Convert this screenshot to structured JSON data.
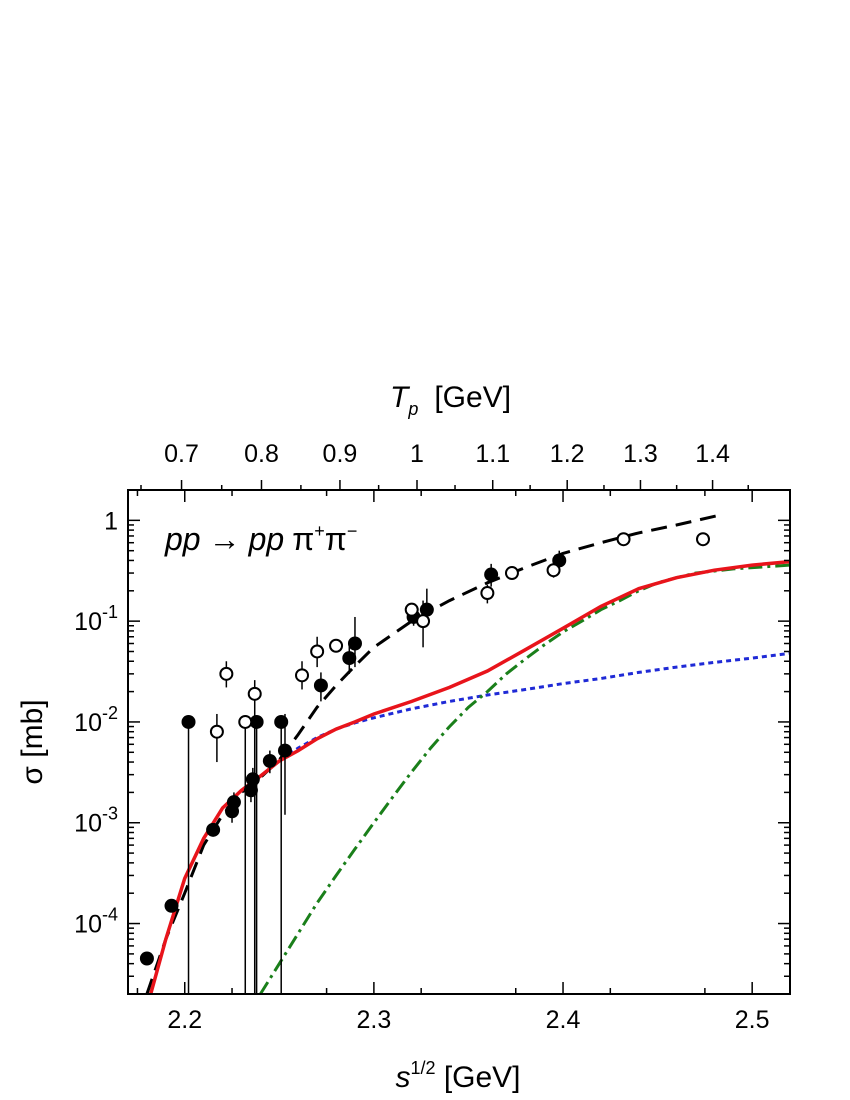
{
  "chart_data": {
    "type": "scatter",
    "title": "",
    "plot_label": {
      "reaction_lhs": "pp",
      "arrow": "→",
      "reaction_rhs": "pp",
      "pi": "π",
      "plus": "+",
      "minus": "−"
    },
    "xlabel": {
      "symbol": "s",
      "power": "1/2",
      "unit": " [GeV]"
    },
    "ylabel": {
      "symbol": "σ",
      "unit": " [mb]"
    },
    "top_label": {
      "symbol": "T",
      "subscript": "p",
      "unit": "[GeV]"
    },
    "xlim": [
      2.17,
      2.52
    ],
    "ylim": [
      2e-05,
      2
    ],
    "yscale": "log",
    "grid": false,
    "x_ticks": [
      "2.2",
      "2.3",
      "2.4",
      "2.5"
    ],
    "x_tick_values": [
      2.2,
      2.3,
      2.4,
      2.5
    ],
    "y_ticks": [
      {
        "value": 0.0001,
        "base": "10",
        "exp": "-4"
      },
      {
        "value": 0.001,
        "base": "10",
        "exp": "-3"
      },
      {
        "value": 0.01,
        "base": "10",
        "exp": "-2"
      },
      {
        "value": 0.1,
        "base": "10",
        "exp": "-1"
      },
      {
        "value": 1,
        "base": "1",
        "exp": ""
      }
    ],
    "top_ticks": [
      "0.7",
      "0.8",
      "0.9",
      "1",
      "1.1",
      "1.2",
      "1.3",
      "1.4"
    ],
    "top_tick_values": [
      0.7,
      0.8,
      0.9,
      1.0,
      1.1,
      1.2,
      1.3,
      1.4
    ],
    "proton_mass_gev": 0.938,
    "colors": {
      "solid": "#e8141b",
      "dashed": "#000000",
      "dotted": "#1f2ad6",
      "dashdot": "#1a7f1a"
    },
    "series": [
      {
        "kind": "filled",
        "points": [
          {
            "x": 2.18,
            "y": 4.5e-05
          },
          {
            "x": 2.193,
            "y": 0.00015
          },
          {
            "x": 2.202,
            "y": 0.01,
            "lo": 1e-06
          },
          {
            "x": 2.215,
            "y": 0.00085
          },
          {
            "x": 2.225,
            "y": 0.0013,
            "lo": 0.001,
            "hi": 0.0017
          },
          {
            "x": 2.226,
            "y": 0.0016,
            "lo": 0.0013,
            "hi": 0.002
          },
          {
            "x": 2.235,
            "y": 0.0021,
            "lo": 0.0016,
            "hi": 0.0028
          },
          {
            "x": 2.236,
            "y": 0.0027,
            "lo": 0.002,
            "hi": 0.0035
          },
          {
            "x": 2.238,
            "y": 0.01,
            "lo": 1e-06
          },
          {
            "x": 2.245,
            "y": 0.0041,
            "lo": 0.0031,
            "hi": 0.0052
          },
          {
            "x": 2.251,
            "y": 0.01,
            "lo": 1e-06
          },
          {
            "x": 2.253,
            "y": 0.0052,
            "lo": 0.0012,
            "hi": 0.012
          },
          {
            "x": 2.272,
            "y": 0.023,
            "lo": 0.016,
            "hi": 0.031
          },
          {
            "x": 2.287,
            "y": 0.043,
            "lo": 0.03,
            "hi": 0.06
          },
          {
            "x": 2.29,
            "y": 0.06,
            "lo": 0.035,
            "hi": 0.11
          },
          {
            "x": 2.321,
            "y": 0.11,
            "lo": 0.09,
            "hi": 0.14
          },
          {
            "x": 2.328,
            "y": 0.13,
            "lo": 0.09,
            "hi": 0.21
          },
          {
            "x": 2.362,
            "y": 0.29,
            "lo": 0.22,
            "hi": 0.37
          },
          {
            "x": 2.398,
            "y": 0.4,
            "lo": 0.3,
            "hi": 0.5
          }
        ]
      },
      {
        "kind": "open",
        "points": [
          {
            "x": 2.217,
            "y": 0.008,
            "lo": 0.004,
            "hi": 0.012
          },
          {
            "x": 2.222,
            "y": 0.03,
            "lo": 0.022,
            "hi": 0.04
          },
          {
            "x": 2.232,
            "y": 0.01,
            "lo": 1e-06
          },
          {
            "x": 2.237,
            "y": 0.019,
            "lo": 1e-06,
            "hi": 0.026
          },
          {
            "x": 2.262,
            "y": 0.029,
            "lo": 0.021,
            "hi": 0.04
          },
          {
            "x": 2.27,
            "y": 0.05,
            "lo": 0.035,
            "hi": 0.07
          },
          {
            "x": 2.28,
            "y": 0.057
          },
          {
            "x": 2.32,
            "y": 0.13
          },
          {
            "x": 2.326,
            "y": 0.1,
            "lo": 0.055,
            "hi": 0.16
          },
          {
            "x": 2.36,
            "y": 0.19,
            "lo": 0.15,
            "hi": 0.23
          },
          {
            "x": 2.373,
            "y": 0.3
          },
          {
            "x": 2.395,
            "y": 0.32,
            "lo": 0.27,
            "hi": 0.38
          },
          {
            "x": 2.432,
            "y": 0.65
          },
          {
            "x": 2.474,
            "y": 0.65
          }
        ]
      }
    ],
    "curves": [
      {
        "style": "dashed",
        "points": [
          [
            2.18,
            1.8e-05
          ],
          [
            2.19,
            7e-05
          ],
          [
            2.2,
            0.0002
          ],
          [
            2.21,
            0.0006
          ],
          [
            2.22,
            0.0012
          ],
          [
            2.23,
            0.002
          ],
          [
            2.24,
            0.0028
          ],
          [
            2.25,
            0.0042
          ],
          [
            2.26,
            0.0075
          ],
          [
            2.27,
            0.014
          ],
          [
            2.28,
            0.023
          ],
          [
            2.29,
            0.036
          ],
          [
            2.3,
            0.055
          ],
          [
            2.32,
            0.1
          ],
          [
            2.34,
            0.16
          ],
          [
            2.36,
            0.24
          ],
          [
            2.38,
            0.34
          ],
          [
            2.4,
            0.47
          ],
          [
            2.42,
            0.6
          ],
          [
            2.44,
            0.75
          ],
          [
            2.46,
            0.9
          ],
          [
            2.485,
            1.15
          ]
        ]
      },
      {
        "style": "dotted",
        "points": [
          [
            2.255,
            0.0048
          ],
          [
            2.26,
            0.0055
          ],
          [
            2.27,
            0.007
          ],
          [
            2.28,
            0.0085
          ],
          [
            2.29,
            0.0098
          ],
          [
            2.3,
            0.011
          ],
          [
            2.32,
            0.0135
          ],
          [
            2.34,
            0.016
          ],
          [
            2.36,
            0.0185
          ],
          [
            2.38,
            0.021
          ],
          [
            2.4,
            0.024
          ],
          [
            2.42,
            0.027
          ],
          [
            2.44,
            0.031
          ],
          [
            2.46,
            0.035
          ],
          [
            2.48,
            0.039
          ],
          [
            2.5,
            0.043
          ],
          [
            2.52,
            0.048
          ]
        ]
      },
      {
        "style": "dashdot",
        "points": [
          [
            2.24,
            1.8e-05
          ],
          [
            2.25,
            4e-05
          ],
          [
            2.26,
            8e-05
          ],
          [
            2.27,
            0.00016
          ],
          [
            2.28,
            0.0003
          ],
          [
            2.29,
            0.00055
          ],
          [
            2.3,
            0.001
          ],
          [
            2.31,
            0.0018
          ],
          [
            2.32,
            0.0032
          ],
          [
            2.33,
            0.0055
          ],
          [
            2.34,
            0.009
          ],
          [
            2.35,
            0.014
          ],
          [
            2.36,
            0.02
          ],
          [
            2.37,
            0.03
          ],
          [
            2.38,
            0.042
          ],
          [
            2.39,
            0.058
          ],
          [
            2.4,
            0.078
          ],
          [
            2.41,
            0.1
          ],
          [
            2.42,
            0.13
          ],
          [
            2.43,
            0.16
          ],
          [
            2.44,
            0.2
          ],
          [
            2.45,
            0.24
          ],
          [
            2.46,
            0.27
          ],
          [
            2.47,
            0.3
          ],
          [
            2.49,
            0.33
          ],
          [
            2.52,
            0.36
          ]
        ]
      },
      {
        "style": "solid",
        "points": [
          [
            2.182,
            1.8e-05
          ],
          [
            2.19,
            7e-05
          ],
          [
            2.2,
            0.00028
          ],
          [
            2.21,
            0.0007
          ],
          [
            2.22,
            0.0014
          ],
          [
            2.23,
            0.0021
          ],
          [
            2.24,
            0.0029
          ],
          [
            2.25,
            0.0041
          ],
          [
            2.26,
            0.0052
          ],
          [
            2.27,
            0.0068
          ],
          [
            2.28,
            0.0085
          ],
          [
            2.29,
            0.01
          ],
          [
            2.3,
            0.012
          ],
          [
            2.32,
            0.016
          ],
          [
            2.34,
            0.022
          ],
          [
            2.36,
            0.032
          ],
          [
            2.38,
            0.052
          ],
          [
            2.4,
            0.085
          ],
          [
            2.42,
            0.14
          ],
          [
            2.44,
            0.21
          ],
          [
            2.46,
            0.27
          ],
          [
            2.48,
            0.32
          ],
          [
            2.5,
            0.36
          ],
          [
            2.52,
            0.39
          ]
        ]
      }
    ]
  }
}
